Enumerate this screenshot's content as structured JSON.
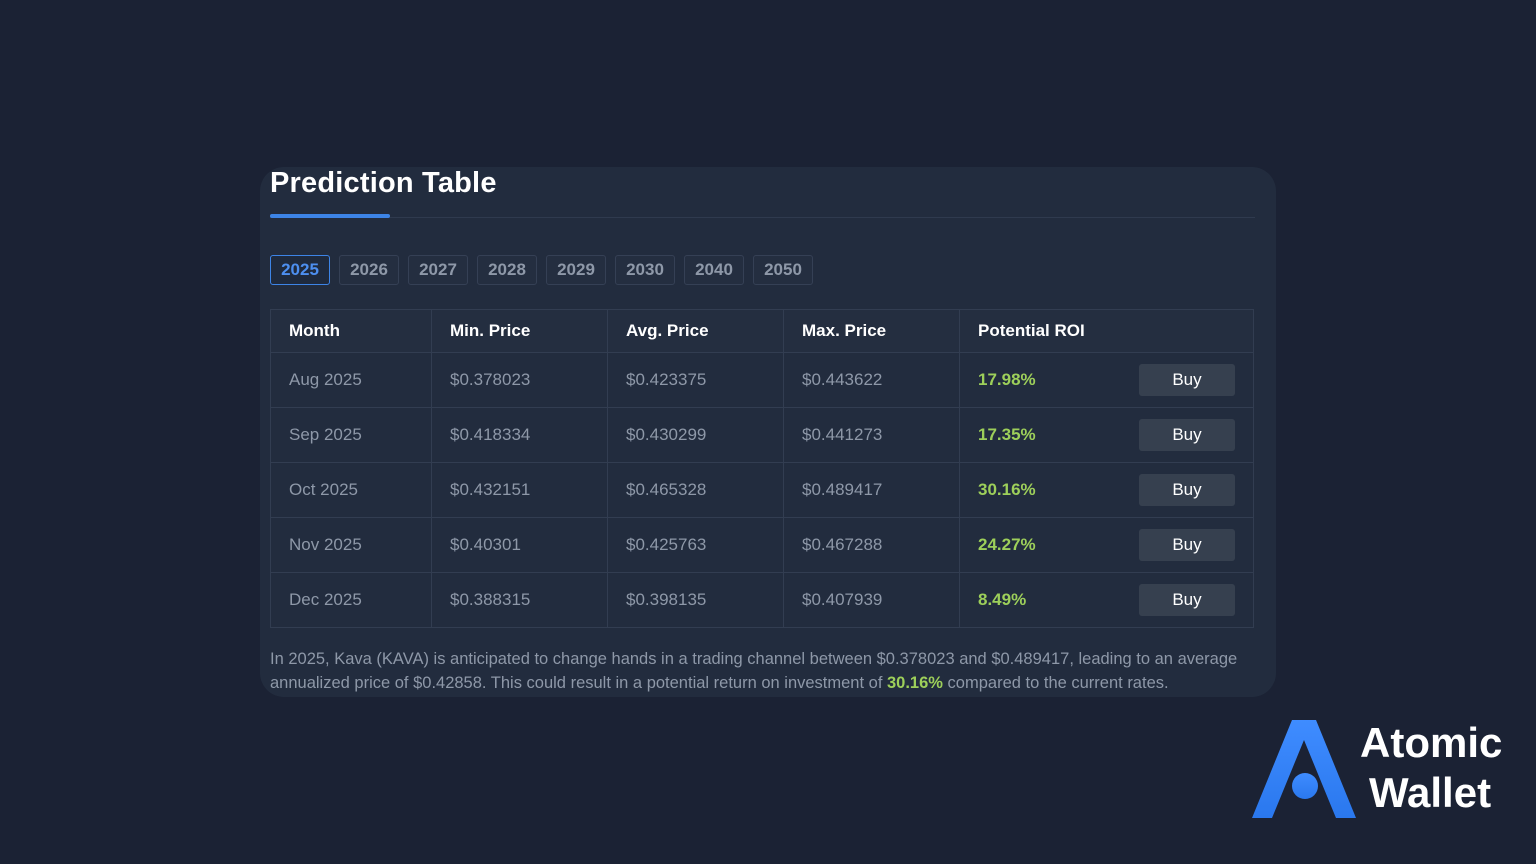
{
  "card": {
    "title": "Prediction Table"
  },
  "years": [
    "2025",
    "2026",
    "2027",
    "2028",
    "2029",
    "2030",
    "2040",
    "2050"
  ],
  "active_year": "2025",
  "table": {
    "headers": [
      "Month",
      "Min. Price",
      "Avg. Price",
      "Max. Price",
      "Potential ROI"
    ],
    "buy_label": "Buy",
    "rows": [
      {
        "month": "Aug 2025",
        "min": "$0.378023",
        "avg": "$0.423375",
        "max": "$0.443622",
        "roi": "17.98%"
      },
      {
        "month": "Sep 2025",
        "min": "$0.418334",
        "avg": "$0.430299",
        "max": "$0.441273",
        "roi": "17.35%"
      },
      {
        "month": "Oct 2025",
        "min": "$0.432151",
        "avg": "$0.465328",
        "max": "$0.489417",
        "roi": "30.16%"
      },
      {
        "month": "Nov 2025",
        "min": "$0.40301",
        "avg": "$0.425763",
        "max": "$0.467288",
        "roi": "24.27%"
      },
      {
        "month": "Dec 2025",
        "min": "$0.388315",
        "avg": "$0.398135",
        "max": "$0.407939",
        "roi": "8.49%"
      }
    ]
  },
  "summary": {
    "before": "In 2025, Kava (KAVA) is anticipated to change hands in a trading channel between $0.378023 and $0.489417, leading to an average annualized price of $0.42858. This could result in a potential return on investment of ",
    "highlight": "30.16%",
    "after": " compared to the current rates."
  },
  "brand": {
    "line1": "Atomic",
    "line2": "Wallet",
    "logo_icon": "atomic-wallet-logo-icon"
  },
  "colors": {
    "background": "#1b2234",
    "card": "#222c3e",
    "accent": "#3d84e6",
    "roi_green": "#9dcf5a"
  }
}
